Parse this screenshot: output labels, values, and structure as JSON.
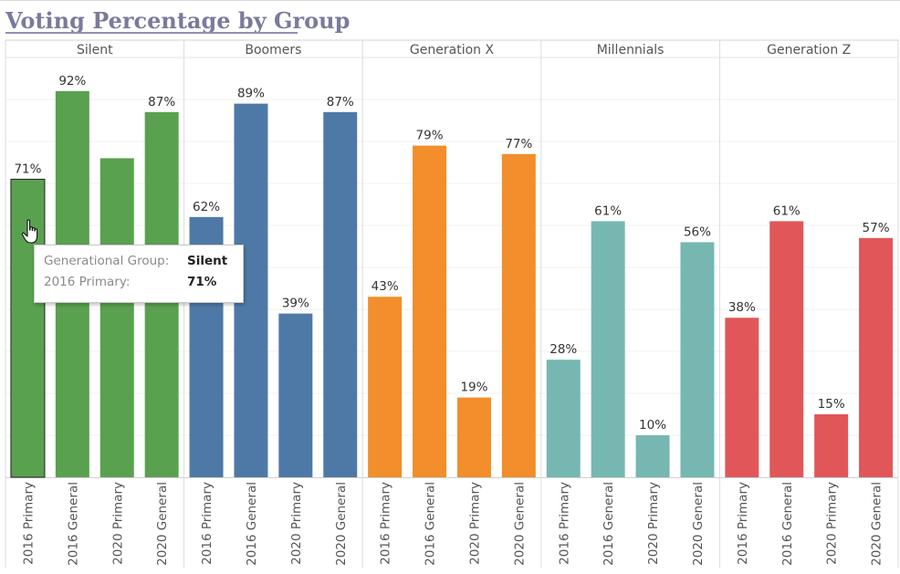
{
  "title": "Voting Percentage by Group",
  "tooltip": {
    "label1": "Generational Group:",
    "value1": "Silent",
    "label2": "2016 Primary:",
    "value2": "71%"
  },
  "chart_data": {
    "type": "bar",
    "title": "Voting Percentage by Group",
    "ylim": [
      0,
      100
    ],
    "grid": true,
    "categories": [
      "2016 Primary",
      "2016 General",
      "2020 Primary",
      "2020 General"
    ],
    "groups": [
      {
        "name": "Silent",
        "color": "#59a14f",
        "values": [
          71,
          92,
          76,
          87
        ],
        "labels": [
          "71%",
          "92%",
          "",
          "87%"
        ]
      },
      {
        "name": "Boomers",
        "color": "#4e79a7",
        "values": [
          62,
          89,
          39,
          87
        ],
        "labels": [
          "62%",
          "89%",
          "39%",
          "87%"
        ]
      },
      {
        "name": "Generation X",
        "color": "#f28e2b",
        "values": [
          43,
          79,
          19,
          77
        ],
        "labels": [
          "43%",
          "79%",
          "19%",
          "77%"
        ]
      },
      {
        "name": "Millennials",
        "color": "#76b7b2",
        "values": [
          28,
          61,
          10,
          56
        ],
        "labels": [
          "28%",
          "61%",
          "10%",
          "56%"
        ]
      },
      {
        "name": "Generation Z",
        "color": "#e15759",
        "values": [
          38,
          61,
          15,
          57
        ],
        "labels": [
          "38%",
          "61%",
          "15%",
          "57%"
        ]
      }
    ],
    "highlighted": {
      "group": "Silent",
      "category": "2016 Primary"
    }
  }
}
